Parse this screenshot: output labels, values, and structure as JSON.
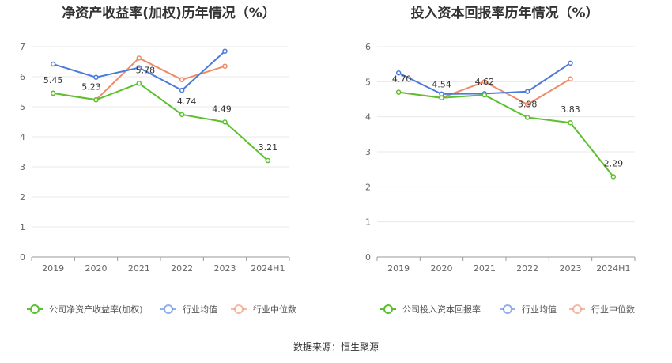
{
  "colors": {
    "company": "#5cc12e",
    "industry_avg": "#4a7bdc",
    "industry_median": "#ef8a67"
  },
  "chart_data": [
    {
      "type": "line",
      "title": "净资产收益率(加权)历年情况（%）",
      "categories": [
        "2019",
        "2020",
        "2021",
        "2022",
        "2023",
        "2024H1"
      ],
      "ylim": [
        0,
        7
      ],
      "yticks": [
        "0",
        "1",
        "2",
        "3",
        "4",
        "5",
        "6",
        "7"
      ],
      "series": [
        {
          "name": "公司净资产收益率(加权)",
          "values": [
            5.45,
            5.23,
            5.78,
            4.74,
            4.49,
            3.21
          ],
          "labels": [
            "5.45",
            "5.23",
            "5.78",
            "4.74",
            "4.49",
            "3.21"
          ]
        },
        {
          "name": "行业均值",
          "values": [
            6.42,
            5.98,
            6.3,
            5.55,
            6.85,
            null
          ]
        },
        {
          "name": "行业中位数",
          "values": [
            5.45,
            5.23,
            6.62,
            5.9,
            6.35,
            null
          ]
        }
      ],
      "grid": true,
      "legend": "bottom"
    },
    {
      "type": "line",
      "title": "投入资本回报率历年情况（%）",
      "categories": [
        "2019",
        "2020",
        "2021",
        "2022",
        "2023",
        "2024H1"
      ],
      "ylim": [
        0,
        6
      ],
      "yticks": [
        "0",
        "1",
        "2",
        "3",
        "4",
        "5",
        "6"
      ],
      "series": [
        {
          "name": "公司投入资本回报率",
          "values": [
            4.7,
            4.54,
            4.62,
            3.98,
            3.83,
            2.29
          ],
          "labels": [
            "4.70",
            "4.54",
            "4.62",
            "3.98",
            "3.83",
            "2.29"
          ]
        },
        {
          "name": "行业均值",
          "values": [
            5.25,
            4.65,
            4.66,
            4.72,
            5.53,
            null
          ]
        },
        {
          "name": "行业中位数",
          "values": [
            4.7,
            4.54,
            5.0,
            4.35,
            5.08,
            null
          ]
        }
      ],
      "grid": true,
      "legend": "bottom"
    }
  ],
  "footer": {
    "source": "数据来源：恒生聚源"
  }
}
